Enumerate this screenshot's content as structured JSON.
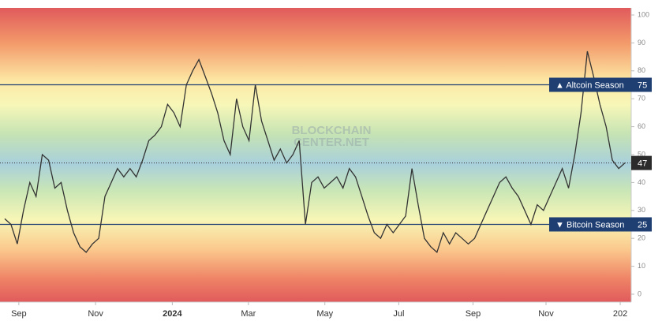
{
  "chart_data": {
    "type": "line",
    "watermark": [
      "BLOCKCHAIN",
      "CENTER.NET"
    ],
    "xlim": [
      0,
      99.25
    ],
    "xticks": [
      {
        "value": 2.25,
        "label": "Sep"
      },
      {
        "value": 14.5,
        "label": "Nov"
      },
      {
        "value": 26.75,
        "label": "2024"
      },
      {
        "value": 38.9,
        "label": "Mar"
      },
      {
        "value": 51.1,
        "label": "May"
      },
      {
        "value": 62.9,
        "label": "Jul"
      },
      {
        "value": 74.75,
        "label": "Sep"
      },
      {
        "value": 86.4,
        "label": "Nov"
      },
      {
        "value": 98.25,
        "label": "202"
      }
    ],
    "ylim": [
      0,
      100
    ],
    "yticks": [
      0,
      10,
      20,
      30,
      40,
      50,
      60,
      70,
      80,
      90,
      100
    ],
    "series": [
      {
        "color": "#333333",
        "values": [
          27,
          25,
          18,
          30,
          40,
          35,
          50,
          48,
          38,
          40,
          30,
          22,
          17,
          15,
          18,
          20,
          35,
          40,
          45,
          42,
          45,
          42,
          48,
          55,
          57,
          60,
          68,
          65,
          60,
          75,
          80,
          84,
          78,
          72,
          65,
          55,
          50,
          70,
          60,
          55,
          75,
          62,
          55,
          48,
          52,
          47,
          50,
          55,
          25,
          40,
          42,
          38,
          40,
          42,
          38,
          45,
          42,
          35,
          28,
          22,
          20,
          25,
          22,
          25,
          28,
          45,
          32,
          20,
          17,
          15,
          22,
          18,
          22,
          20,
          18,
          20,
          25,
          30,
          35,
          40,
          42,
          38,
          35,
          30,
          25,
          32,
          30,
          35,
          40,
          45,
          38,
          50,
          65,
          87,
          78,
          68,
          60,
          48,
          45,
          47
        ]
      }
    ],
    "reference_lines": [
      {
        "value": 75,
        "label": "▲ Altcoin Season",
        "color": "#1f3f73"
      },
      {
        "value": 25,
        "label": "▼ Bitcoin Season",
        "color": "#1f3f73"
      }
    ]
  }
}
